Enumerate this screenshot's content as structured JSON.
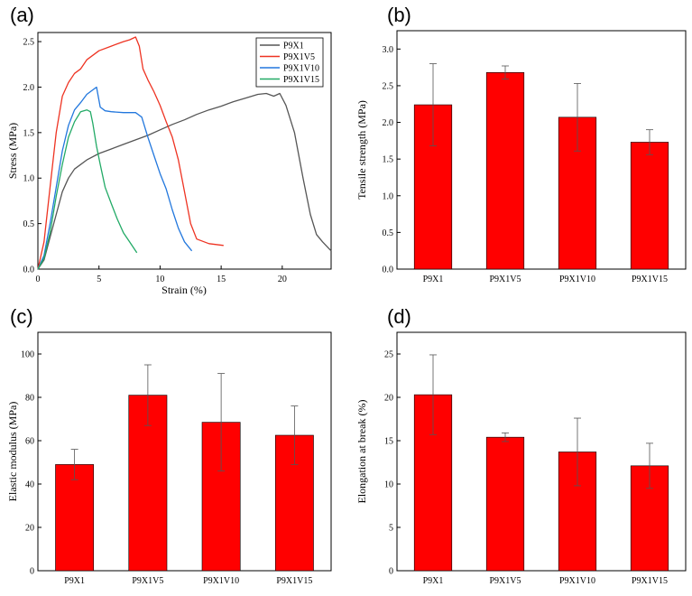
{
  "chart_data": [
    {
      "panel": "(a)",
      "type": "line",
      "xlabel": "Strain (%)",
      "ylabel": "Stress (MPa)",
      "xlim": [
        0,
        24
      ],
      "ylim": [
        0,
        2.6
      ],
      "xticks": [
        0,
        5,
        10,
        15,
        20
      ],
      "yticks": [
        0.0,
        0.5,
        1.0,
        1.5,
        2.0,
        2.5
      ],
      "legend_position": "top-right",
      "series": [
        {
          "name": "P9X1",
          "color": "#555555",
          "points": [
            [
              0,
              0
            ],
            [
              0.5,
              0.1
            ],
            [
              1,
              0.35
            ],
            [
              1.5,
              0.6
            ],
            [
              2,
              0.85
            ],
            [
              2.5,
              1.0
            ],
            [
              3,
              1.1
            ],
            [
              4,
              1.2
            ],
            [
              5,
              1.27
            ],
            [
              6,
              1.32
            ],
            [
              7,
              1.37
            ],
            [
              8,
              1.42
            ],
            [
              9,
              1.47
            ],
            [
              10,
              1.53
            ],
            [
              11,
              1.59
            ],
            [
              12,
              1.64
            ],
            [
              13,
              1.7
            ],
            [
              14,
              1.75
            ],
            [
              15,
              1.79
            ],
            [
              16,
              1.84
            ],
            [
              17,
              1.88
            ],
            [
              18,
              1.92
            ],
            [
              18.7,
              1.93
            ],
            [
              19.3,
              1.9
            ],
            [
              19.8,
              1.93
            ],
            [
              20.3,
              1.8
            ],
            [
              21,
              1.5
            ],
            [
              21.7,
              1.0
            ],
            [
              22.3,
              0.6
            ],
            [
              22.8,
              0.38
            ],
            [
              23.3,
              0.3
            ],
            [
              24,
              0.2
            ]
          ]
        },
        {
          "name": "P9X1V5",
          "color": "#ee3322",
          "points": [
            [
              0,
              0
            ],
            [
              0.5,
              0.3
            ],
            [
              1,
              0.9
            ],
            [
              1.5,
              1.5
            ],
            [
              2,
              1.9
            ],
            [
              2.5,
              2.05
            ],
            [
              3,
              2.15
            ],
            [
              3.5,
              2.2
            ],
            [
              4,
              2.3
            ],
            [
              5,
              2.4
            ],
            [
              6,
              2.45
            ],
            [
              7,
              2.5
            ],
            [
              7.5,
              2.52
            ],
            [
              8,
              2.55
            ],
            [
              8.3,
              2.45
            ],
            [
              8.6,
              2.2
            ],
            [
              9,
              2.08
            ],
            [
              9.5,
              1.95
            ],
            [
              10,
              1.8
            ],
            [
              10.5,
              1.62
            ],
            [
              11,
              1.45
            ],
            [
              11.5,
              1.2
            ],
            [
              12,
              0.85
            ],
            [
              12.5,
              0.5
            ],
            [
              13,
              0.33
            ],
            [
              14,
              0.28
            ],
            [
              15.2,
              0.26
            ]
          ]
        },
        {
          "name": "P9X1V10",
          "color": "#2277dd",
          "points": [
            [
              0,
              0
            ],
            [
              0.5,
              0.15
            ],
            [
              1,
              0.5
            ],
            [
              1.5,
              0.9
            ],
            [
              2,
              1.3
            ],
            [
              2.5,
              1.58
            ],
            [
              3,
              1.75
            ],
            [
              3.5,
              1.83
            ],
            [
              4,
              1.92
            ],
            [
              4.5,
              1.97
            ],
            [
              4.8,
              2.0
            ],
            [
              5.1,
              1.78
            ],
            [
              5.5,
              1.74
            ],
            [
              6,
              1.73
            ],
            [
              7,
              1.72
            ],
            [
              8,
              1.72
            ],
            [
              8.5,
              1.67
            ],
            [
              9,
              1.45
            ],
            [
              9.5,
              1.25
            ],
            [
              10,
              1.05
            ],
            [
              10.5,
              0.88
            ],
            [
              11,
              0.65
            ],
            [
              11.5,
              0.45
            ],
            [
              12,
              0.3
            ],
            [
              12.6,
              0.2
            ]
          ]
        },
        {
          "name": "P9X1V15",
          "color": "#22aa66",
          "points": [
            [
              0,
              0
            ],
            [
              0.5,
              0.12
            ],
            [
              1,
              0.4
            ],
            [
              1.5,
              0.8
            ],
            [
              2,
              1.15
            ],
            [
              2.5,
              1.45
            ],
            [
              3,
              1.62
            ],
            [
              3.5,
              1.73
            ],
            [
              4,
              1.75
            ],
            [
              4.3,
              1.73
            ],
            [
              4.5,
              1.6
            ],
            [
              4.8,
              1.35
            ],
            [
              5.1,
              1.15
            ],
            [
              5.5,
              0.9
            ],
            [
              6,
              0.72
            ],
            [
              6.5,
              0.55
            ],
            [
              7,
              0.4
            ],
            [
              7.5,
              0.3
            ],
            [
              8.1,
              0.18
            ]
          ]
        }
      ]
    },
    {
      "panel": "(b)",
      "type": "bar",
      "categories": [
        "P9X1",
        "P9X1V5",
        "P9X1V10",
        "P9X1V15"
      ],
      "values": [
        2.24,
        2.68,
        2.07,
        1.73
      ],
      "errors": [
        0.56,
        0.09,
        0.46,
        0.17
      ],
      "ylabel": "Tensile strength (MPa)",
      "ylim": [
        0,
        3.25
      ],
      "yticks": [
        0.0,
        0.5,
        1.0,
        1.5,
        2.0,
        2.5,
        3.0
      ],
      "bar_color": "#ff0000"
    },
    {
      "panel": "(c)",
      "type": "bar",
      "categories": [
        "P9X1",
        "P9X1V5",
        "P9X1V10",
        "P9X1V15"
      ],
      "values": [
        49,
        81,
        68.5,
        62.5
      ],
      "errors": [
        7,
        14,
        22.5,
        13.5
      ],
      "ylabel": "Elastic modulus (MPa)",
      "ylim": [
        0,
        110
      ],
      "yticks": [
        0,
        20,
        40,
        60,
        80,
        100
      ],
      "bar_color": "#ff0000"
    },
    {
      "panel": "(d)",
      "type": "bar",
      "categories": [
        "P9X1",
        "P9X1V5",
        "P9X1V10",
        "P9X1V15"
      ],
      "values": [
        20.3,
        15.4,
        13.7,
        12.1
      ],
      "errors": [
        4.6,
        0.5,
        3.9,
        2.6
      ],
      "ylabel": "Elongation at break (%)",
      "ylim": [
        0,
        27.5
      ],
      "yticks": [
        0,
        5,
        10,
        15,
        20,
        25
      ],
      "bar_color": "#ff0000"
    }
  ]
}
